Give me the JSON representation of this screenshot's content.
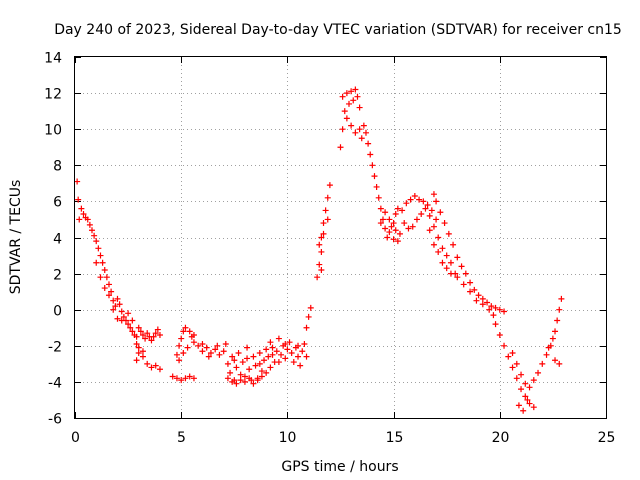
{
  "chart_data": {
    "type": "scatter",
    "title": "Day 240 of 2023, Sidereal Day-to-day VTEC variation (SDTVAR) for receiver cn15",
    "xlabel": "GPS time / hours",
    "ylabel": "SDTVAR / TECUs",
    "xlim": [
      0,
      25
    ],
    "ylim": [
      -6,
      14
    ],
    "xticks": [
      "0",
      "5",
      "10",
      "15",
      "20",
      "25"
    ],
    "yticks": [
      "-6",
      "-4",
      "-2",
      "0",
      "2",
      "4",
      "6",
      "8",
      "10",
      "12",
      "14"
    ],
    "xtick_values": [
      0,
      5,
      10,
      15,
      20,
      25
    ],
    "ytick_values": [
      -6,
      -4,
      -2,
      0,
      2,
      4,
      6,
      8,
      10,
      12,
      14
    ],
    "grid": true,
    "marker": "+",
    "color": "#ff0000",
    "series": [
      {
        "name": "cn15",
        "points": [
          [
            0.1,
            7.1
          ],
          [
            0.15,
            6.1
          ],
          [
            0.2,
            5.0
          ],
          [
            0.3,
            5.6
          ],
          [
            0.4,
            5.3
          ],
          [
            0.5,
            5.1
          ],
          [
            0.6,
            5.0
          ],
          [
            0.7,
            4.7
          ],
          [
            0.8,
            4.4
          ],
          [
            0.9,
            4.1
          ],
          [
            1.0,
            3.8
          ],
          [
            1.1,
            3.4
          ],
          [
            1.2,
            3.0
          ],
          [
            1.3,
            2.6
          ],
          [
            1.4,
            2.2
          ],
          [
            1.5,
            1.8
          ],
          [
            1.6,
            1.4
          ],
          [
            1.7,
            1.0
          ],
          [
            1.8,
            0.5
          ],
          [
            1.9,
            0.2
          ],
          [
            2.0,
            0.6
          ],
          [
            2.1,
            0.3
          ],
          [
            2.2,
            -0.1
          ],
          [
            2.3,
            -0.4
          ],
          [
            2.4,
            -0.6
          ],
          [
            2.5,
            -0.8
          ],
          [
            2.6,
            -1.0
          ],
          [
            2.7,
            -1.2
          ],
          [
            2.8,
            -1.4
          ],
          [
            2.9,
            -1.5
          ],
          [
            3.0,
            -1.0
          ],
          [
            3.1,
            -1.2
          ],
          [
            3.2,
            -1.4
          ],
          [
            3.3,
            -1.6
          ],
          [
            3.4,
            -1.3
          ],
          [
            3.5,
            -1.5
          ],
          [
            3.6,
            -1.7
          ],
          [
            3.7,
            -1.5
          ],
          [
            3.8,
            -1.3
          ],
          [
            3.9,
            -1.1
          ],
          [
            4.0,
            -1.4
          ],
          [
            1.0,
            2.6
          ],
          [
            1.2,
            1.8
          ],
          [
            1.4,
            1.2
          ],
          [
            1.6,
            0.8
          ],
          [
            1.8,
            0.0
          ],
          [
            2.0,
            -0.5
          ],
          [
            2.2,
            -0.6
          ],
          [
            2.5,
            -0.2
          ],
          [
            2.7,
            -0.6
          ],
          [
            2.9,
            -1.9
          ],
          [
            3.0,
            -2.4
          ],
          [
            3.2,
            -2.6
          ],
          [
            3.4,
            -3.0
          ],
          [
            3.6,
            -3.2
          ],
          [
            3.8,
            -3.1
          ],
          [
            4.0,
            -3.3
          ],
          [
            3.0,
            -2.1
          ],
          [
            3.2,
            -2.3
          ],
          [
            2.9,
            -2.8
          ],
          [
            4.6,
            -3.7
          ],
          [
            4.8,
            -3.8
          ],
          [
            5.0,
            -3.9
          ],
          [
            5.2,
            -3.8
          ],
          [
            5.4,
            -3.7
          ],
          [
            5.6,
            -3.8
          ],
          [
            4.8,
            -2.5
          ],
          [
            4.9,
            -2.0
          ],
          [
            5.0,
            -1.6
          ],
          [
            5.1,
            -1.2
          ],
          [
            5.2,
            -1.0
          ],
          [
            5.4,
            -1.2
          ],
          [
            5.5,
            -1.5
          ],
          [
            5.6,
            -1.8
          ],
          [
            5.8,
            -2.0
          ],
          [
            6.0,
            -2.3
          ],
          [
            6.2,
            -2.1
          ],
          [
            6.4,
            -2.4
          ],
          [
            6.6,
            -2.2
          ],
          [
            6.8,
            -2.5
          ],
          [
            4.9,
            -2.8
          ],
          [
            5.1,
            -2.4
          ],
          [
            5.3,
            -2.1
          ],
          [
            5.6,
            -1.4
          ],
          [
            6.0,
            -1.9
          ],
          [
            6.3,
            -2.6
          ],
          [
            6.7,
            -2.0
          ],
          [
            7.0,
            -2.3
          ],
          [
            7.1,
            -1.9
          ],
          [
            7.2,
            -3.0
          ],
          [
            7.3,
            -3.5
          ],
          [
            7.4,
            -2.6
          ],
          [
            7.5,
            -3.9
          ],
          [
            7.6,
            -3.2
          ],
          [
            7.7,
            -2.4
          ],
          [
            7.8,
            -3.6
          ],
          [
            7.9,
            -2.9
          ],
          [
            8.0,
            -3.7
          ],
          [
            8.1,
            -2.1
          ],
          [
            8.2,
            -3.3
          ],
          [
            8.3,
            -3.9
          ],
          [
            8.4,
            -2.6
          ],
          [
            8.5,
            -3.1
          ],
          [
            8.6,
            -3.8
          ],
          [
            8.7,
            -2.4
          ],
          [
            8.8,
            -3.4
          ],
          [
            8.9,
            -2.8
          ],
          [
            9.0,
            -2.2
          ],
          [
            9.1,
            -2.6
          ],
          [
            9.2,
            -1.8
          ],
          [
            9.3,
            -2.1
          ],
          [
            9.4,
            -2.9
          ],
          [
            9.5,
            -2.3
          ],
          [
            9.6,
            -1.6
          ],
          [
            9.7,
            -2.5
          ],
          [
            9.8,
            -2.0
          ],
          [
            9.9,
            -2.7
          ],
          [
            10.0,
            -2.2
          ],
          [
            10.1,
            -1.8
          ],
          [
            10.2,
            -2.4
          ],
          [
            10.3,
            -2.9
          ],
          [
            10.4,
            -2.1
          ],
          [
            10.5,
            -2.6
          ],
          [
            10.6,
            -3.1
          ],
          [
            10.7,
            -2.3
          ],
          [
            10.8,
            -1.9
          ],
          [
            10.9,
            -1.0
          ],
          [
            11.0,
            -0.4
          ],
          [
            11.1,
            0.1
          ],
          [
            7.2,
            -3.8
          ],
          [
            7.4,
            -4.0
          ],
          [
            7.6,
            -4.1
          ],
          [
            7.8,
            -3.9
          ],
          [
            8.0,
            -4.0
          ],
          [
            8.2,
            -3.8
          ],
          [
            8.4,
            -4.1
          ],
          [
            8.6,
            -3.9
          ],
          [
            8.8,
            -3.7
          ],
          [
            9.0,
            -3.5
          ],
          [
            9.2,
            -3.2
          ],
          [
            7.5,
            -2.8
          ],
          [
            8.1,
            -2.7
          ],
          [
            8.7,
            -3.0
          ],
          [
            9.3,
            -2.5
          ],
          [
            9.9,
            -1.9
          ],
          [
            10.5,
            -2.0
          ],
          [
            10.9,
            -2.6
          ],
          [
            9.6,
            -2.9
          ],
          [
            11.4,
            1.8
          ],
          [
            11.5,
            2.5
          ],
          [
            11.6,
            3.2
          ],
          [
            11.6,
            4.0
          ],
          [
            11.7,
            4.8
          ],
          [
            11.8,
            5.5
          ],
          [
            11.9,
            6.2
          ],
          [
            12.0,
            6.9
          ],
          [
            11.5,
            3.6
          ],
          [
            11.7,
            4.2
          ],
          [
            11.9,
            5.0
          ],
          [
            11.6,
            2.2
          ],
          [
            12.5,
            9.0
          ],
          [
            12.6,
            10.0
          ],
          [
            12.7,
            11.0
          ],
          [
            12.8,
            12.0
          ],
          [
            12.9,
            11.4
          ],
          [
            13.0,
            12.1
          ],
          [
            13.1,
            11.6
          ],
          [
            13.2,
            12.2
          ],
          [
            13.3,
            11.8
          ],
          [
            13.4,
            11.2
          ],
          [
            12.6,
            11.8
          ],
          [
            12.8,
            10.6
          ],
          [
            13.0,
            10.2
          ],
          [
            13.2,
            9.8
          ],
          [
            13.4,
            10.0
          ],
          [
            13.5,
            9.5
          ],
          [
            13.6,
            10.2
          ],
          [
            13.7,
            9.8
          ],
          [
            13.8,
            9.2
          ],
          [
            13.9,
            8.6
          ],
          [
            14.0,
            8.0
          ],
          [
            14.1,
            7.4
          ],
          [
            14.2,
            6.8
          ],
          [
            14.3,
            6.2
          ],
          [
            14.4,
            5.6
          ],
          [
            14.5,
            5.0
          ],
          [
            14.6,
            4.5
          ],
          [
            14.7,
            4.0
          ],
          [
            14.8,
            4.3
          ],
          [
            14.9,
            4.6
          ],
          [
            15.0,
            3.9
          ],
          [
            15.1,
            4.4
          ],
          [
            15.2,
            3.8
          ],
          [
            15.3,
            4.2
          ],
          [
            14.4,
            4.8
          ],
          [
            14.6,
            5.4
          ],
          [
            14.8,
            5.0
          ],
          [
            15.0,
            4.8
          ],
          [
            15.1,
            5.3
          ],
          [
            15.2,
            5.6
          ],
          [
            15.4,
            5.5
          ],
          [
            15.6,
            5.9
          ],
          [
            15.8,
            6.1
          ],
          [
            16.0,
            6.3
          ],
          [
            16.2,
            6.1
          ],
          [
            16.4,
            6.0
          ],
          [
            16.6,
            5.8
          ],
          [
            16.8,
            5.5
          ],
          [
            17.0,
            5.0
          ],
          [
            15.5,
            4.8
          ],
          [
            15.7,
            4.5
          ],
          [
            15.9,
            4.6
          ],
          [
            16.1,
            5.0
          ],
          [
            16.3,
            5.3
          ],
          [
            16.5,
            5.6
          ],
          [
            16.7,
            5.2
          ],
          [
            16.9,
            4.6
          ],
          [
            17.1,
            4.0
          ],
          [
            17.3,
            3.4
          ],
          [
            17.5,
            3.0
          ],
          [
            17.7,
            2.6
          ],
          [
            17.9,
            2.0
          ],
          [
            16.7,
            4.4
          ],
          [
            16.9,
            3.6
          ],
          [
            17.1,
            3.2
          ],
          [
            17.3,
            2.6
          ],
          [
            17.5,
            2.3
          ],
          [
            17.7,
            2.0
          ],
          [
            16.9,
            6.4
          ],
          [
            17.0,
            6.0
          ],
          [
            17.2,
            5.4
          ],
          [
            17.4,
            4.8
          ],
          [
            17.6,
            4.2
          ],
          [
            17.8,
            3.6
          ],
          [
            18.0,
            2.9
          ],
          [
            18.2,
            2.4
          ],
          [
            18.4,
            2.0
          ],
          [
            18.6,
            1.5
          ],
          [
            18.8,
            1.1
          ],
          [
            19.0,
            0.8
          ],
          [
            19.2,
            0.6
          ],
          [
            19.4,
            0.4
          ],
          [
            19.6,
            0.2
          ],
          [
            19.8,
            0.1
          ],
          [
            20.0,
            0.0
          ],
          [
            20.2,
            -0.1
          ],
          [
            18.0,
            1.8
          ],
          [
            18.3,
            1.4
          ],
          [
            18.6,
            1.0
          ],
          [
            18.9,
            0.5
          ],
          [
            19.2,
            0.3
          ],
          [
            19.5,
            0.0
          ],
          [
            19.7,
            -0.3
          ],
          [
            19.8,
            -0.8
          ],
          [
            20.0,
            -1.4
          ],
          [
            20.2,
            -2.0
          ],
          [
            20.4,
            -2.6
          ],
          [
            20.6,
            -3.2
          ],
          [
            20.8,
            -3.8
          ],
          [
            21.0,
            -4.4
          ],
          [
            21.2,
            -4.8
          ],
          [
            21.4,
            -5.2
          ],
          [
            21.6,
            -5.4
          ],
          [
            20.9,
            -5.3
          ],
          [
            21.1,
            -5.6
          ],
          [
            21.3,
            -5.0
          ],
          [
            20.6,
            -2.4
          ],
          [
            20.8,
            -3.0
          ],
          [
            21.0,
            -3.6
          ],
          [
            21.2,
            -4.1
          ],
          [
            21.4,
            -4.3
          ],
          [
            21.6,
            -3.9
          ],
          [
            21.8,
            -3.5
          ],
          [
            22.0,
            -3.0
          ],
          [
            22.2,
            -2.5
          ],
          [
            22.4,
            -2.0
          ],
          [
            22.6,
            -1.2
          ],
          [
            22.7,
            -0.6
          ],
          [
            22.8,
            0.0
          ],
          [
            22.9,
            0.6
          ],
          [
            22.6,
            -2.8
          ],
          [
            22.8,
            -3.0
          ],
          [
            22.3,
            -2.1
          ],
          [
            22.5,
            -1.6
          ]
        ]
      }
    ]
  }
}
